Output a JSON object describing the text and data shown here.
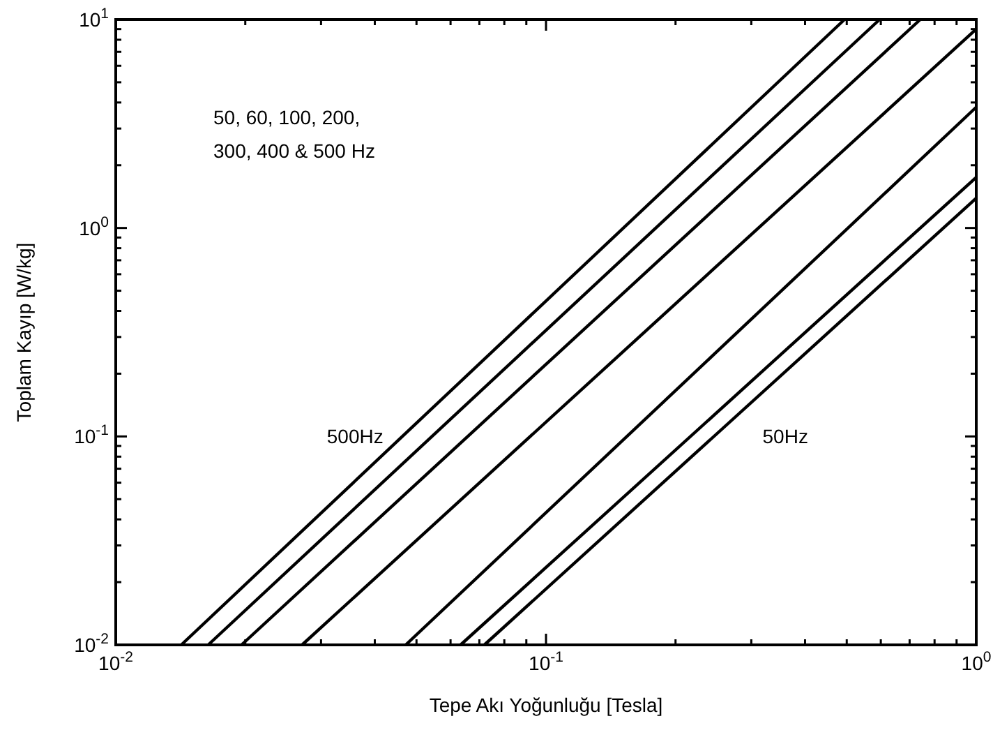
{
  "chart_data": {
    "type": "line",
    "xlabel": "Tepe Akı Yoğunluğu [Tesla]",
    "ylabel": "Toplam Kayıp [W/kg]",
    "log": "xy",
    "grid": false,
    "line_style": "solid",
    "xlim": [
      0.01,
      1
    ],
    "ylim": [
      0.01,
      10
    ],
    "xticks": [
      {
        "value": 0.01,
        "label": "10$^{-2}$"
      },
      {
        "value": 0.02,
        "label": null
      },
      {
        "value": 0.03,
        "label": null
      },
      {
        "value": 0.04,
        "label": null
      },
      {
        "value": 0.05,
        "label": null
      },
      {
        "value": 0.06,
        "label": null
      },
      {
        "value": 0.07,
        "label": null
      },
      {
        "value": 0.08,
        "label": null
      },
      {
        "value": 0.09,
        "label": null
      },
      {
        "value": 0.1,
        "label": "10$^{-1}$"
      },
      {
        "value": 0.2,
        "label": null
      },
      {
        "value": 0.3,
        "label": null
      },
      {
        "value": 0.4,
        "label": null
      },
      {
        "value": 0.5,
        "label": null
      },
      {
        "value": 0.6,
        "label": null
      },
      {
        "value": 0.7,
        "label": null
      },
      {
        "value": 0.8,
        "label": null
      },
      {
        "value": 0.9,
        "label": null
      },
      {
        "value": 1,
        "label": "10$^{0}$"
      }
    ],
    "yticks": [
      {
        "value": 0.01,
        "label": "10$^{-2}$"
      },
      {
        "value": 0.02,
        "label": null
      },
      {
        "value": 0.03,
        "label": null
      },
      {
        "value": 0.04,
        "label": null
      },
      {
        "value": 0.05,
        "label": null
      },
      {
        "value": 0.06,
        "label": null
      },
      {
        "value": 0.07,
        "label": null
      },
      {
        "value": 0.08,
        "label": null
      },
      {
        "value": 0.09,
        "label": null
      },
      {
        "value": 0.1,
        "label": "10$^{-1}$"
      },
      {
        "value": 0.2,
        "label": null
      },
      {
        "value": 0.3,
        "label": null
      },
      {
        "value": 0.4,
        "label": null
      },
      {
        "value": 0.5,
        "label": null
      },
      {
        "value": 0.6,
        "label": null
      },
      {
        "value": 0.7,
        "label": null
      },
      {
        "value": 0.8,
        "label": null
      },
      {
        "value": 0.9,
        "label": null
      },
      {
        "value": 1,
        "label": "10$^{0}$"
      },
      {
        "value": 2,
        "label": null
      },
      {
        "value": 3,
        "label": null
      },
      {
        "value": 4,
        "label": null
      },
      {
        "value": 5,
        "label": null
      },
      {
        "value": 6,
        "label": null
      },
      {
        "value": 7,
        "label": null
      },
      {
        "value": 8,
        "label": null
      },
      {
        "value": 9,
        "label": null
      },
      {
        "value": 10,
        "label": "10$^{1}$"
      }
    ],
    "series": [
      {
        "color": "#000000",
        "x": [
          0.0142,
          0.494
        ],
        "values": [
          0.01,
          10
        ]
      },
      {
        "color": "#000000",
        "x": [
          0.0164,
          0.596
        ],
        "values": [
          0.01,
          10
        ]
      },
      {
        "color": "#000000",
        "x": [
          0.0196,
          0.741
        ],
        "values": [
          0.01,
          10
        ]
      },
      {
        "color": "#000000",
        "x": [
          0.0271,
          1
        ],
        "values": [
          0.01,
          9
        ]
      },
      {
        "color": "#000000",
        "x": [
          0.0472,
          1
        ],
        "values": [
          0.01,
          3.8
        ]
      },
      {
        "color": "#000000",
        "x": [
          0.0633,
          1
        ],
        "values": [
          0.01,
          1.75
        ]
      },
      {
        "color": "#000000",
        "x": [
          0.0719,
          1
        ],
        "values": [
          0.01,
          1.39
        ]
      }
    ],
    "annotations": [
      "50, 60, 100, 200, 300, 400 & 500 Hz",
      "500Hz",
      "50Hz"
    ]
  }
}
